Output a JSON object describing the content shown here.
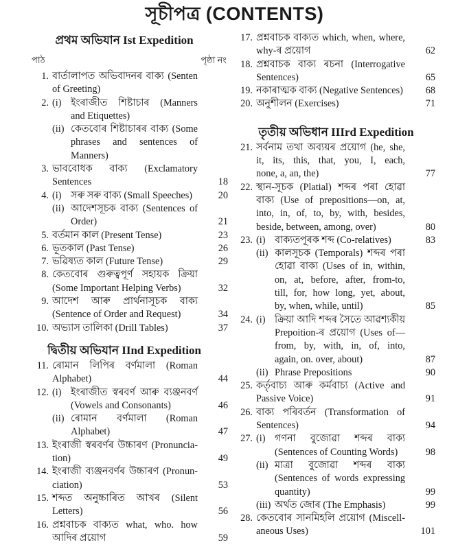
{
  "title": "সূচীপত্ৰ (CONTENTS)",
  "left": {
    "sections": [
      {
        "heading": "প্ৰথম অভিযান Ist Expedition",
        "col_lesson": "পাঠ",
        "col_page": "পৃষ্ঠা নং",
        "entries": [
          {
            "num": "1.",
            "sub": "",
            "lines": [
              "বাৰ্তালাপত অভিবাদনৰ বাক্য (Senten",
              "of Greeting)"
            ],
            "page": ""
          },
          {
            "num": "2.",
            "sub": "(i)",
            "lines": [
              "ইংৰাজীত শিষ্টাচাৰ (Manners",
              "and Etiquettes)"
            ],
            "page": ""
          },
          {
            "num": "",
            "sub": "(ii)",
            "lines": [
              "কেতবোৰ শিষ্টাচাৰৰ বাক্য (Some",
              "phrases and sentences of",
              "Manners)"
            ],
            "page": ""
          },
          {
            "num": "3.",
            "sub": "",
            "lines": [
              "ভাববোধক বাক্য (Exclamatory",
              "Sentences"
            ],
            "page": "18"
          },
          {
            "num": "4.",
            "sub": "(i)",
            "lines": [
              "সৰু সৰু বাক্য (Small Speeches)"
            ],
            "page": "20"
          },
          {
            "num": "",
            "sub": "(ii)",
            "lines": [
              "আদেশসূচক বাক্য (Sentences of",
              "Order)"
            ],
            "page": "21"
          },
          {
            "num": "5.",
            "sub": "",
            "lines": [
              "বৰ্তমান কাল (Present Tense)"
            ],
            "page": "23"
          },
          {
            "num": "6.",
            "sub": "",
            "lines": [
              "ভূতকাল (Past Tense)"
            ],
            "page": "26"
          },
          {
            "num": "7.",
            "sub": "",
            "lines": [
              "ভৱিষ্যত কাল (Future Tense)"
            ],
            "page": "29"
          },
          {
            "num": "8.",
            "sub": "",
            "lines": [
              "কেতবোৰ গুৰুত্বপূৰ্ণ সহায়ক ক্ৰিয়া",
              "(Some Important Helping Verbs)"
            ],
            "page": "32"
          },
          {
            "num": "9.",
            "sub": "",
            "lines": [
              "আদেশ আৰু প্ৰাৰ্থনাসূচক বাক্য",
              "(Sentence of Order and Request)"
            ],
            "page": "34"
          },
          {
            "num": "10.",
            "sub": "",
            "lines": [
              "অভ্যাস তালিকা (Drill Tables)"
            ],
            "page": "37"
          }
        ]
      },
      {
        "heading": "দ্বিতীয় অভিযান IInd Expedition",
        "entries": [
          {
            "num": "11.",
            "sub": "",
            "lines": [
              "ৰোমান লিপিৰ বৰ্ণমালা (Roman",
              "Alphabet)"
            ],
            "page": "44"
          },
          {
            "num": "12.",
            "sub": "(i)",
            "lines": [
              "ইংৰাজীত স্বৰবৰ্ণ আৰু ব্যঞ্জনবৰ্ণ",
              "(Vowels and Consonants)"
            ],
            "page": "46"
          },
          {
            "num": "",
            "sub": "(ii)",
            "lines": [
              "ৰোমান বৰ্ণমালা (Roman",
              "Alphabet)"
            ],
            "page": "47"
          },
          {
            "num": "13.",
            "sub": "",
            "lines": [
              "ইংৰাজী স্বৰবৰ্ণৰ উচ্চাৰণ (Pronuncia-",
              "tion)"
            ],
            "page": "49"
          },
          {
            "num": "14.",
            "sub": "",
            "lines": [
              "ইংৰাজী ব্যঞ্জনবৰ্ণৰ উচ্চাৰণ (Pronun-",
              "ciation)"
            ],
            "page": "53"
          },
          {
            "num": "15.",
            "sub": "",
            "lines": [
              "শব্দত অনুচ্চাৰিত আখৰ (Silent",
              "Letters)"
            ],
            "page": "56"
          },
          {
            "num": "16.",
            "sub": "",
            "lines": [
              "প্ৰশ্নবাচক বাক্যত what, who. how",
              "আদিৰ প্ৰয়োগ"
            ],
            "page": "59"
          }
        ]
      }
    ]
  },
  "right": {
    "sections": [
      {
        "heading": "",
        "entries": [
          {
            "num": "17.",
            "sub": "",
            "lines": [
              "প্ৰশ্নবাচক বাক্যত which, when, where,",
              "why-ৰ প্ৰয়োগ"
            ],
            "page": "62"
          },
          {
            "num": "18.",
            "sub": "",
            "lines": [
              "প্ৰশ্নবাচক বাক্য ৰচনা (Interrogative",
              "Sentences)"
            ],
            "page": "65"
          },
          {
            "num": "19.",
            "sub": "",
            "lines": [
              "নকাৰাত্মক বাক্য (Negative Sentences)"
            ],
            "page": "68"
          },
          {
            "num": "20.",
            "sub": "",
            "lines": [
              "অনুশীলন (Exercises)"
            ],
            "page": "71"
          }
        ]
      },
      {
        "heading": "তৃতীয় অভিধান IIIrd Expedition",
        "entries": [
          {
            "num": "21.",
            "sub": "",
            "lines": [
              "সৰ্বনাম তথা অব্যয়ৰ প্ৰয়োগ (he, she,",
              "it, its, this, that, you, I, each,",
              "none, a, an, the)"
            ],
            "page": "77"
          },
          {
            "num": "22.",
            "sub": "",
            "lines": [
              "স্থান-সূচক (Platial) শব্দৰ পৰা হোৱা",
              "বাক্য (Use of prepositions—on, at,",
              "into, in, of, to, by, with, besides,",
              "beside, between, among, over)"
            ],
            "page": "80"
          },
          {
            "num": "23.",
            "sub": "(i)",
            "lines": [
              "বাক্যতপূৰক শব্দ (Co-relatives)"
            ],
            "page": "83"
          },
          {
            "num": "",
            "sub": "(ii)",
            "lines": [
              "কালসূচক (Temporals) শব্দৰ পৰা",
              "হোৱা বাক্য (Uses of in, within,",
              "on, at, before, after, from-to,",
              "till, for, how long, yet, about,",
              "by, when, while, until)"
            ],
            "page": "85"
          },
          {
            "num": "24.",
            "sub": "(i)",
            "lines": [
              "ক্ৰিয়া আদি শব্দৰ সৈতে আৱশ্যকীয়",
              "Prepoition-ৰ প্ৰয়োগ (Uses of—",
              "from, by, with, in, of, into,",
              "again, on. over, about)"
            ],
            "page": "87"
          },
          {
            "num": "",
            "sub": "(ii)",
            "lines": [
              "Phrase Prepositions"
            ],
            "page": "90"
          },
          {
            "num": "25.",
            "sub": "",
            "lines": [
              "কৰ্তৃবাচ্য আৰু কৰ্মবাচ্য (Active and",
              "Passive Voice)"
            ],
            "page": "91"
          },
          {
            "num": "26.",
            "sub": "",
            "lines": [
              "বাক্য পৰিবৰ্তন (Transformation of",
              "Sentences)"
            ],
            "page": "94"
          },
          {
            "num": "27.",
            "sub": "(i)",
            "lines": [
              "গণনা বুজোৱা শব্দৰ বাক্য",
              "(Sentences of Counting Words)"
            ],
            "page": "98"
          },
          {
            "num": "",
            "sub": "(ii)",
            "lines": [
              "মাত্ৰা বুজোৱা শব্দৰ বাক্য",
              "(Sentences of words expressing",
              "quantity)"
            ],
            "page": "99"
          },
          {
            "num": "",
            "sub": "(iii)",
            "lines": [
              "অৰ্থত জোৰ (The Emphasis)"
            ],
            "page": "99"
          },
          {
            "num": "28.",
            "sub": "",
            "lines": [
              "কেতবোৰ সানমিহলি প্ৰয়োগ (Miscell-",
              "aneous Uses)"
            ],
            "page": "101"
          }
        ]
      }
    ]
  }
}
